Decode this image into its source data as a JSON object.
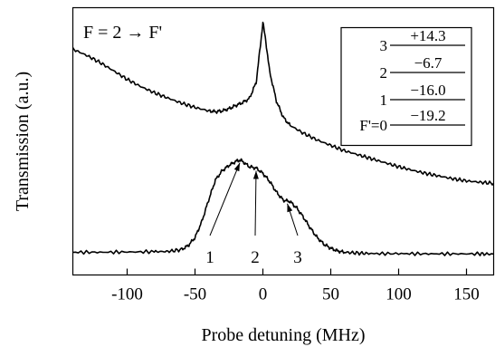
{
  "chart_data": {
    "type": "line",
    "title": "",
    "xlabel": "Probe detuning (MHz)",
    "ylabel": "Transmission (a.u.)",
    "xlim": [
      -140,
      170
    ],
    "xticks": [
      -100,
      -50,
      0,
      50,
      100,
      150
    ],
    "xtick_labels": [
      "-100",
      "-50",
      "0",
      "50",
      "100",
      "150"
    ],
    "y_ticks_shown": false,
    "grid": false,
    "annotation_title": "F = 2 → F'",
    "series": [
      {
        "x": [
          -140,
          -130,
          -120,
          -110,
          -100,
          -90,
          -80,
          -70,
          -60,
          -50,
          -40,
          -35,
          -30,
          -25,
          -20,
          -15,
          -10,
          -5,
          -2,
          0,
          2,
          5,
          10,
          15,
          20,
          30,
          40,
          50,
          60,
          70,
          80,
          90,
          100,
          110,
          120,
          130,
          140,
          150,
          160,
          170
        ],
        "y": [
          0.845,
          0.822,
          0.795,
          0.764,
          0.732,
          0.705,
          0.682,
          0.662,
          0.643,
          0.627,
          0.614,
          0.611,
          0.614,
          0.622,
          0.634,
          0.645,
          0.66,
          0.72,
          0.85,
          0.945,
          0.88,
          0.76,
          0.65,
          0.59,
          0.56,
          0.53,
          0.505,
          0.485,
          0.465,
          0.45,
          0.435,
          0.42,
          0.405,
          0.392,
          0.38,
          0.37,
          0.36,
          0.352,
          0.347,
          0.343
        ]
      },
      {
        "x": [
          -140,
          -120,
          -100,
          -80,
          -70,
          -60,
          -55,
          -50,
          -45,
          -40,
          -35,
          -30,
          -25,
          -20,
          -17,
          -15,
          -10,
          -5,
          0,
          5,
          10,
          15,
          20,
          25,
          30,
          35,
          40,
          45,
          50,
          55,
          60,
          70,
          80,
          100,
          120,
          140,
          160,
          170
        ],
        "y": [
          0.085,
          0.085,
          0.086,
          0.087,
          0.088,
          0.095,
          0.11,
          0.14,
          0.2,
          0.28,
          0.355,
          0.39,
          0.41,
          0.425,
          0.43,
          0.425,
          0.405,
          0.4,
          0.38,
          0.35,
          0.31,
          0.28,
          0.275,
          0.25,
          0.215,
          0.175,
          0.14,
          0.115,
          0.1,
          0.09,
          0.085,
          0.082,
          0.08,
          0.08,
          0.079,
          0.079,
          0.079,
          0.078
        ]
      }
    ],
    "peak_labels": [
      {
        "text": "1",
        "arrow_to_x": -17
      },
      {
        "text": "2",
        "arrow_to_x": -5
      },
      {
        "text": "3",
        "arrow_to_x": 18
      }
    ],
    "level_table": [
      {
        "label": "3",
        "value": "+14.3"
      },
      {
        "label": "2",
        "value": "−6.7"
      },
      {
        "label": "1",
        "value": "−16.0"
      },
      {
        "label": "F'=0",
        "value": "−19.2"
      }
    ]
  }
}
